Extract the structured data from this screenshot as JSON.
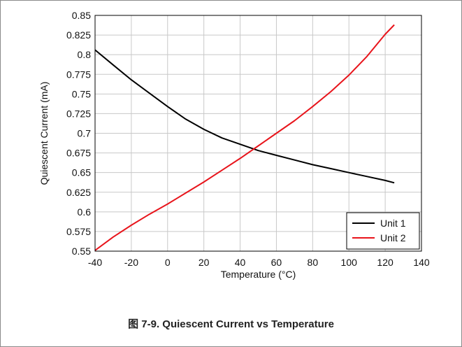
{
  "figure": {
    "label_prefix": "图",
    "caption": "7-9. Quiescent Current vs Temperature"
  },
  "chart_data": {
    "type": "line",
    "title": "",
    "xlabel": "Temperature (°C)",
    "ylabel": "Quiescent Current (mA)",
    "xlim": [
      -40,
      140
    ],
    "ylim": [
      0.55,
      0.85
    ],
    "xticks": [
      -40,
      -20,
      0,
      20,
      40,
      60,
      80,
      100,
      120,
      140
    ],
    "yticks": [
      0.55,
      0.575,
      0.6,
      0.625,
      0.65,
      0.675,
      0.7,
      0.725,
      0.75,
      0.775,
      0.8,
      0.825,
      0.85
    ],
    "xtick_labels": [
      "-40",
      "-20",
      "0",
      "20",
      "40",
      "60",
      "80",
      "100",
      "120",
      "140"
    ],
    "ytick_labels": [
      "0.55",
      "0.575",
      "0.6",
      "0.625",
      "0.65",
      "0.675",
      "0.7",
      "0.725",
      "0.75",
      "0.775",
      "0.8",
      "0.825",
      "0.85"
    ],
    "grid": true,
    "legend_position": "bottom-right",
    "series": [
      {
        "name": "Unit 1",
        "color": "#000000",
        "x": [
          -40,
          -30,
          -20,
          -10,
          0,
          10,
          20,
          30,
          40,
          50,
          60,
          70,
          80,
          90,
          100,
          110,
          120,
          125
        ],
        "y": [
          0.806,
          0.787,
          0.768,
          0.751,
          0.734,
          0.718,
          0.705,
          0.694,
          0.686,
          0.678,
          0.672,
          0.666,
          0.66,
          0.655,
          0.65,
          0.645,
          0.64,
          0.637
        ]
      },
      {
        "name": "Unit 2",
        "color": "#e8141b",
        "x": [
          -40,
          -30,
          -20,
          -10,
          0,
          10,
          20,
          30,
          40,
          50,
          60,
          70,
          80,
          90,
          100,
          110,
          120,
          125
        ],
        "y": [
          0.551,
          0.568,
          0.583,
          0.597,
          0.61,
          0.624,
          0.638,
          0.653,
          0.668,
          0.684,
          0.7,
          0.716,
          0.734,
          0.753,
          0.774,
          0.798,
          0.826,
          0.838
        ]
      }
    ]
  }
}
